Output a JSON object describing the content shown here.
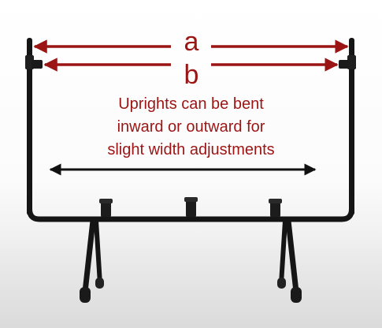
{
  "dimensions": {
    "label_a": "a",
    "label_b": "b"
  },
  "caption": {
    "lines": [
      "Uprights can be bent",
      "inward or outward for",
      "slight width adjustments"
    ]
  },
  "colors": {
    "arrow_red": "#9b1515",
    "arrow_black": "#111111",
    "stand": "#151515",
    "background": "#ffffff"
  }
}
